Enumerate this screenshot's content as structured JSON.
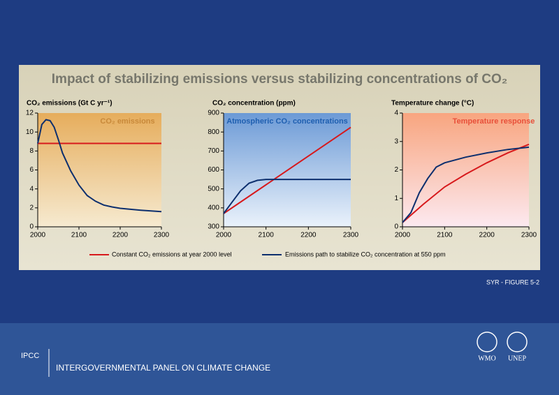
{
  "figure": {
    "title": "Impact of stabilizing emissions versus stabilizing concentrations of CO₂",
    "caption": "SYR - FIGURE 5-2"
  },
  "footer": {
    "org": "IPCC",
    "org_full": "INTERGOVERNMENTAL PANEL ON CLIMATE CHANGE",
    "logo1": "WMO",
    "logo2": "UNEP"
  },
  "chart_data": [
    {
      "type": "line",
      "ylabel": "CO₂ emissions (Gt C yr⁻¹)",
      "annotation": "CO₂ emissions",
      "annotation_color": "#c8893a",
      "xlim": [
        2000,
        2300
      ],
      "xticks": [
        2000,
        2100,
        2200,
        2300
      ],
      "ylim": [
        0,
        12
      ],
      "yticks": [
        0,
        2,
        4,
        6,
        8,
        10,
        12
      ],
      "series": [
        {
          "name": "Constant CO₂ emissions at year 2000 level",
          "color": "#d7191c",
          "x": [
            2000,
            2300
          ],
          "values": [
            8.8,
            8.8
          ]
        },
        {
          "name": "Emissions path to stabilize CO₂ concentration at 550 ppm",
          "color": "#0d2f6e",
          "x": [
            2000,
            2010,
            2020,
            2030,
            2040,
            2050,
            2060,
            2080,
            2100,
            2120,
            2140,
            2160,
            2180,
            2200,
            2250,
            2300
          ],
          "values": [
            8.8,
            10.8,
            11.3,
            11.2,
            10.5,
            9.2,
            7.8,
            5.9,
            4.4,
            3.3,
            2.7,
            2.3,
            2.1,
            1.95,
            1.75,
            1.6
          ]
        }
      ]
    },
    {
      "type": "line",
      "ylabel": "CO₂ concentration (ppm)",
      "annotation": "Atmospheric CO₂ concentrations",
      "annotation_color": "#1f5fb0",
      "xlim": [
        2000,
        2300
      ],
      "xticks": [
        2000,
        2100,
        2200,
        2300
      ],
      "ylim": [
        300,
        900
      ],
      "yticks": [
        300,
        400,
        500,
        600,
        700,
        800,
        900
      ],
      "series": [
        {
          "color": "#d7191c",
          "x": [
            2000,
            2300
          ],
          "values": [
            370,
            825
          ]
        },
        {
          "color": "#0d2f6e",
          "x": [
            2000,
            2020,
            2040,
            2060,
            2080,
            2100,
            2150,
            2300
          ],
          "values": [
            370,
            430,
            490,
            530,
            545,
            550,
            550,
            550
          ]
        }
      ]
    },
    {
      "type": "line",
      "ylabel": "Temperature change (°C)",
      "annotation": "Temperature response",
      "annotation_color": "#e8503a",
      "xlim": [
        2000,
        2300
      ],
      "xticks": [
        2000,
        2100,
        2200,
        2300
      ],
      "ylim": [
        0,
        4
      ],
      "yticks": [
        0,
        1,
        2,
        3,
        4
      ],
      "series": [
        {
          "color": "#d7191c",
          "x": [
            2000,
            2050,
            2100,
            2150,
            2200,
            2250,
            2300
          ],
          "values": [
            0.15,
            0.8,
            1.4,
            1.85,
            2.25,
            2.6,
            2.9
          ]
        },
        {
          "color": "#0d2f6e",
          "x": [
            2000,
            2020,
            2040,
            2060,
            2080,
            2100,
            2150,
            2200,
            2250,
            2300
          ],
          "values": [
            0.15,
            0.5,
            1.2,
            1.7,
            2.1,
            2.25,
            2.45,
            2.6,
            2.72,
            2.8
          ]
        }
      ]
    }
  ]
}
